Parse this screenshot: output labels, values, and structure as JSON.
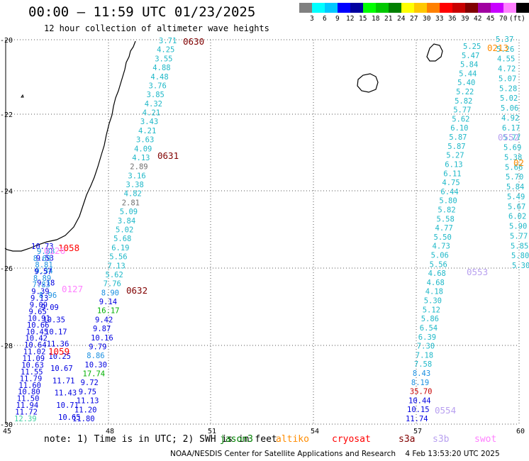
{
  "header": {
    "title": "00:00 – 11:59 UTC 01/23/2025",
    "subtitle": "12 hour collection of altimeter wave heights"
  },
  "colorbar": {
    "colors": [
      "#808080",
      "#00ffff",
      "#00c8ff",
      "#0000ff",
      "#0000a0",
      "#00ff00",
      "#00c800",
      "#008000",
      "#ffff00",
      "#ffc800",
      "#ff8000",
      "#ff0000",
      "#c80000",
      "#800000",
      "#a000a0",
      "#c800ff",
      "#ff80ff",
      "#000000"
    ],
    "labels": [
      "3",
      "6",
      "9",
      "12",
      "15",
      "18",
      "21",
      "24",
      "27",
      "30",
      "33",
      "36",
      "39",
      "42",
      "45",
      "70"
    ],
    "unit": "(ft)"
  },
  "axes": {
    "x_ticks": [
      "45",
      "48",
      "51",
      "54",
      "57",
      "60"
    ],
    "y_ticks": [
      "-20",
      "-22",
      "-24",
      "-26",
      "-28",
      "-30"
    ]
  },
  "tracks": [
    {
      "name": "track-mid",
      "values": [
        [
          "3.71",
          "#1fb8c8"
        ],
        [
          "4.25",
          "#1fb8c8"
        ],
        [
          "3.55",
          "#1fb8c8"
        ],
        [
          "4.88",
          "#1fb8c8"
        ],
        [
          "4.48",
          "#1fb8c8"
        ],
        [
          "3.76",
          "#1fb8c8"
        ],
        [
          "3.85",
          "#1fb8c8"
        ],
        [
          "4.32",
          "#1fb8c8"
        ],
        [
          "4.21",
          "#1fb8c8"
        ],
        [
          "3.43",
          "#1fb8c8"
        ],
        [
          "4.21",
          "#1fb8c8"
        ],
        [
          "3.63",
          "#1fb8c8"
        ],
        [
          "4.09",
          "#1fb8c8"
        ],
        [
          "4.13",
          "#1fb8c8"
        ],
        [
          "2.89",
          "#707070"
        ],
        [
          "3.16",
          "#1fb8c8"
        ],
        [
          "3.38",
          "#1fb8c8"
        ],
        [
          "4.82",
          "#1fb8c8"
        ],
        [
          "2.81",
          "#707070"
        ],
        [
          "5.09",
          "#1fb8c8"
        ],
        [
          "3.84",
          "#1fb8c8"
        ],
        [
          "5.02",
          "#1fb8c8"
        ],
        [
          "5.68",
          "#1fb8c8"
        ],
        [
          "6.19",
          "#1fb8c8"
        ],
        [
          "5.56",
          "#1fb8c8"
        ],
        [
          "7.13",
          "#1fb8c8"
        ],
        [
          "5.62",
          "#1fb8c8"
        ],
        [
          "7.76",
          "#1fb8c8"
        ],
        [
          "8.90",
          "#1a8fe0"
        ],
        [
          "9.14",
          "#0000e0"
        ],
        [
          "16.17",
          "#00b000"
        ],
        [
          "9.42",
          "#0000e0"
        ],
        [
          "9.87",
          "#0000e0"
        ],
        [
          "10.16",
          "#0000e0"
        ],
        [
          "9.79",
          "#0000e0"
        ],
        [
          "8.86",
          "#1a8fe0"
        ],
        [
          "10.30",
          "#0000e0"
        ],
        [
          "17.74",
          "#00b000"
        ],
        [
          "9.72",
          "#0000e0"
        ],
        [
          "9.75",
          "#0000e0"
        ],
        [
          "11.13",
          "#0000e0"
        ],
        [
          "11.20",
          "#0000e0"
        ],
        [
          "11.80",
          "#0000e0"
        ]
      ]
    },
    {
      "name": "track-left",
      "values": [
        [
          "10.73",
          "#0000e0"
        ],
        [
          "8.69",
          "#1a8fe0"
        ],
        [
          "9.34",
          "#1a8fe0"
        ],
        [
          "9.18",
          "#0000e0"
        ],
        [
          "8.96",
          "#1a8fe0"
        ],
        [
          "9.09",
          "#0000e0"
        ],
        [
          "10.35",
          "#0000e0"
        ],
        [
          "10.17",
          "#0000e0"
        ],
        [
          "11.36",
          "#0000e0"
        ],
        [
          "10.25",
          "#0000e0"
        ],
        [
          "10.67",
          "#0000e0"
        ],
        [
          "11.71",
          "#0000e0"
        ],
        [
          "11.43",
          "#0000e0"
        ],
        [
          "10.71",
          "#0000e0"
        ],
        [
          "10.65",
          "#0000e0"
        ]
      ]
    },
    {
      "name": "track-edge",
      "values": [
        [
          "9.88",
          "#1a8fe0"
        ],
        [
          "9.53",
          "#0000e0"
        ],
        [
          "8.81",
          "#1a8fe0"
        ],
        [
          "9.57",
          "#0000e0"
        ],
        [
          "8.89",
          "#1a8fe0"
        ],
        [
          "7.83",
          "#1a8fe0"
        ],
        [
          "9.39",
          "#0000e0"
        ],
        [
          "9.13",
          "#0000e0"
        ],
        [
          "9.09",
          "#0000e0"
        ],
        [
          "9.65",
          "#0000e0"
        ],
        [
          "10.91",
          "#0000e0"
        ],
        [
          "10.66",
          "#0000e0"
        ],
        [
          "10.45",
          "#0000e0"
        ],
        [
          "10.42",
          "#0000e0"
        ],
        [
          "10.64",
          "#0000e0"
        ],
        [
          "11.02",
          "#0000e0"
        ],
        [
          "11.09",
          "#0000e0"
        ],
        [
          "10.63",
          "#0000e0"
        ],
        [
          "11.55",
          "#0000e0"
        ],
        [
          "11.79",
          "#0000e0"
        ],
        [
          "11.60",
          "#0000e0"
        ],
        [
          "10.80",
          "#0000e0"
        ],
        [
          "11.50",
          "#0000e0"
        ],
        [
          "11.94",
          "#0000e0"
        ],
        [
          "11.72",
          "#0000e0"
        ],
        [
          "12.39",
          "#40d0a0"
        ]
      ]
    },
    {
      "name": "track-right-a",
      "values": [
        [
          "5.25",
          "#1fb8c8"
        ],
        [
          "5.47",
          "#1fb8c8"
        ],
        [
          "5.84",
          "#1fb8c8"
        ],
        [
          "5.44",
          "#1fb8c8"
        ],
        [
          "5.40",
          "#1fb8c8"
        ],
        [
          "5.22",
          "#1fb8c8"
        ],
        [
          "5.82",
          "#1fb8c8"
        ],
        [
          "5.77",
          "#1fb8c8"
        ],
        [
          "5.62",
          "#1fb8c8"
        ],
        [
          "6.10",
          "#1fb8c8"
        ],
        [
          "5.87",
          "#1fb8c8"
        ],
        [
          "5.87",
          "#1fb8c8"
        ],
        [
          "5.27",
          "#1fb8c8"
        ],
        [
          "6.13",
          "#1fb8c8"
        ],
        [
          "6.11",
          "#1fb8c8"
        ],
        [
          "4.75",
          "#1fb8c8"
        ],
        [
          "6.44",
          "#1fb8c8"
        ],
        [
          "5.80",
          "#1fb8c8"
        ],
        [
          "5.82",
          "#1fb8c8"
        ],
        [
          "5.58",
          "#1fb8c8"
        ],
        [
          "4.77",
          "#1fb8c8"
        ],
        [
          "5.50",
          "#1fb8c8"
        ],
        [
          "4.73",
          "#1fb8c8"
        ],
        [
          "5.06",
          "#1fb8c8"
        ],
        [
          "5.56",
          "#1fb8c8"
        ],
        [
          "4.68",
          "#1fb8c8"
        ],
        [
          "4.68",
          "#1fb8c8"
        ],
        [
          "4.18",
          "#1fb8c8"
        ],
        [
          "5.30",
          "#1fb8c8"
        ],
        [
          "5.12",
          "#1fb8c8"
        ],
        [
          "5.86",
          "#1fb8c8"
        ],
        [
          "6.54",
          "#1fb8c8"
        ],
        [
          "6.39",
          "#1fb8c8"
        ],
        [
          "7.30",
          "#1fb8c8"
        ],
        [
          "7.18",
          "#1fb8c8"
        ],
        [
          "7.58",
          "#1fb8c8"
        ],
        [
          "8.43",
          "#1a8fe0"
        ],
        [
          "8.19",
          "#1a8fe0"
        ],
        [
          "35.70",
          "#c80000"
        ],
        [
          "10.44",
          "#0000e0"
        ],
        [
          "10.15",
          "#0000e0"
        ],
        [
          "11.74",
          "#0000e0"
        ]
      ]
    },
    {
      "name": "track-right-b",
      "values": [
        [
          "5.37",
          "#1fb8c8"
        ],
        [
          "5.26",
          "#1fb8c8"
        ],
        [
          "4.55",
          "#1fb8c8"
        ],
        [
          "4.72",
          "#1fb8c8"
        ],
        [
          "5.07",
          "#1fb8c8"
        ],
        [
          "5.28",
          "#1fb8c8"
        ],
        [
          "5.02",
          "#1fb8c8"
        ],
        [
          "5.06",
          "#1fb8c8"
        ],
        [
          "4.92",
          "#1fb8c8"
        ],
        [
          "6.17",
          "#1fb8c8"
        ],
        [
          "5.77",
          "#1fb8c8"
        ],
        [
          "5.69",
          "#1fb8c8"
        ],
        [
          "5.38",
          "#1fb8c8"
        ],
        [
          "5.66",
          "#1fb8c8"
        ],
        [
          "5.70",
          "#1fb8c8"
        ],
        [
          "5.84",
          "#1fb8c8"
        ],
        [
          "5.49",
          "#1fb8c8"
        ],
        [
          "5.67",
          "#1fb8c8"
        ],
        [
          "6.02",
          "#1fb8c8"
        ],
        [
          "5.90",
          "#1fb8c8"
        ],
        [
          "5.77",
          "#1fb8c8"
        ],
        [
          "5.85",
          "#1fb8c8"
        ],
        [
          "5.80",
          "#1fb8c8"
        ],
        [
          "5.30",
          "#1fb8c8"
        ]
      ]
    }
  ],
  "pass_labels": [
    {
      "text": "0630",
      "color": "#800000"
    },
    {
      "text": "0631",
      "color": "#800000"
    },
    {
      "text": "0632",
      "color": "#800000"
    },
    {
      "text": "1058",
      "color": "#ff0000"
    },
    {
      "text": "1059",
      "color": "#ff0000"
    },
    {
      "text": "0126",
      "color": "#ff80ff"
    },
    {
      "text": "0127",
      "color": "#ff80ff"
    },
    {
      "text": "0213",
      "color": "#ff8c00"
    },
    {
      "text": "0552",
      "color": "#b8a0f0"
    },
    {
      "text": "0553",
      "color": "#b8a0f0"
    },
    {
      "text": "0554",
      "color": "#b8a0f0"
    },
    {
      "text": "02",
      "color": "#ff8c00"
    }
  ],
  "footer": {
    "note": "note: 1) Time is in UTC; 2) SWH is in feet",
    "legend": [
      {
        "text": "jason3",
        "color": "#008000"
      },
      {
        "text": "altiko",
        "color": "#ff8c00"
      },
      {
        "text": "cryosat",
        "color": "#ff0000"
      },
      {
        "text": "s3a",
        "color": "#800000"
      },
      {
        "text": "s3b",
        "color": "#b8a0f0"
      },
      {
        "text": "swot",
        "color": "#ff80ff"
      }
    ],
    "credit": "NOAA/NESDIS Center for Satellite Applications and Research    4 Feb 13:53:20 UTC 2025"
  }
}
